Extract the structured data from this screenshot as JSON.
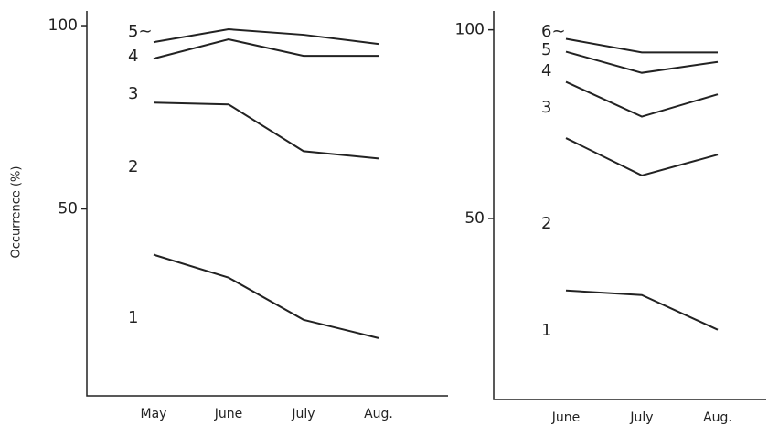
{
  "chart_data": [
    {
      "type": "line",
      "y_label": "Occurrence (%)",
      "categories": [
        "May",
        "June",
        "July",
        "Aug."
      ],
      "series": [
        {
          "color": "#222222",
          "values": [
            95.5,
            99,
            97.5,
            95
          ]
        },
        {
          "color": "#222222",
          "values": [
            91,
            96.25,
            91.75,
            91.75
          ]
        },
        {
          "color": "#222222",
          "values": [
            79,
            78.5,
            65.75,
            63.75
          ]
        },
        {
          "color": "#222222",
          "values": [
            37.5,
            31.25,
            19.75,
            14.75
          ]
        }
      ],
      "annotations": [
        "5~",
        "4",
        "3",
        "2",
        "1"
      ],
      "ylim": [
        -1,
        104
      ],
      "yticks": [
        50,
        100
      ]
    },
    {
      "type": "line",
      "categories": [
        "June",
        "July",
        "Aug."
      ],
      "series": [
        {
          "color": "#222222",
          "values": [
            97.6,
            94,
            94
          ]
        },
        {
          "color": "#222222",
          "values": [
            94.2,
            88.6,
            91.5
          ]
        },
        {
          "color": "#222222",
          "values": [
            86.2,
            77,
            82.9
          ]
        },
        {
          "color": "#222222",
          "values": [
            71.3,
            61.4,
            66.9
          ]
        },
        {
          "color": "#222222",
          "values": [
            30.9,
            29.7,
            20.5
          ]
        }
      ],
      "annotations": [
        "6~",
        "5",
        "4",
        "3",
        "2",
        "1"
      ],
      "ylim": [
        2,
        105
      ],
      "yticks": [
        50,
        100
      ]
    }
  ]
}
